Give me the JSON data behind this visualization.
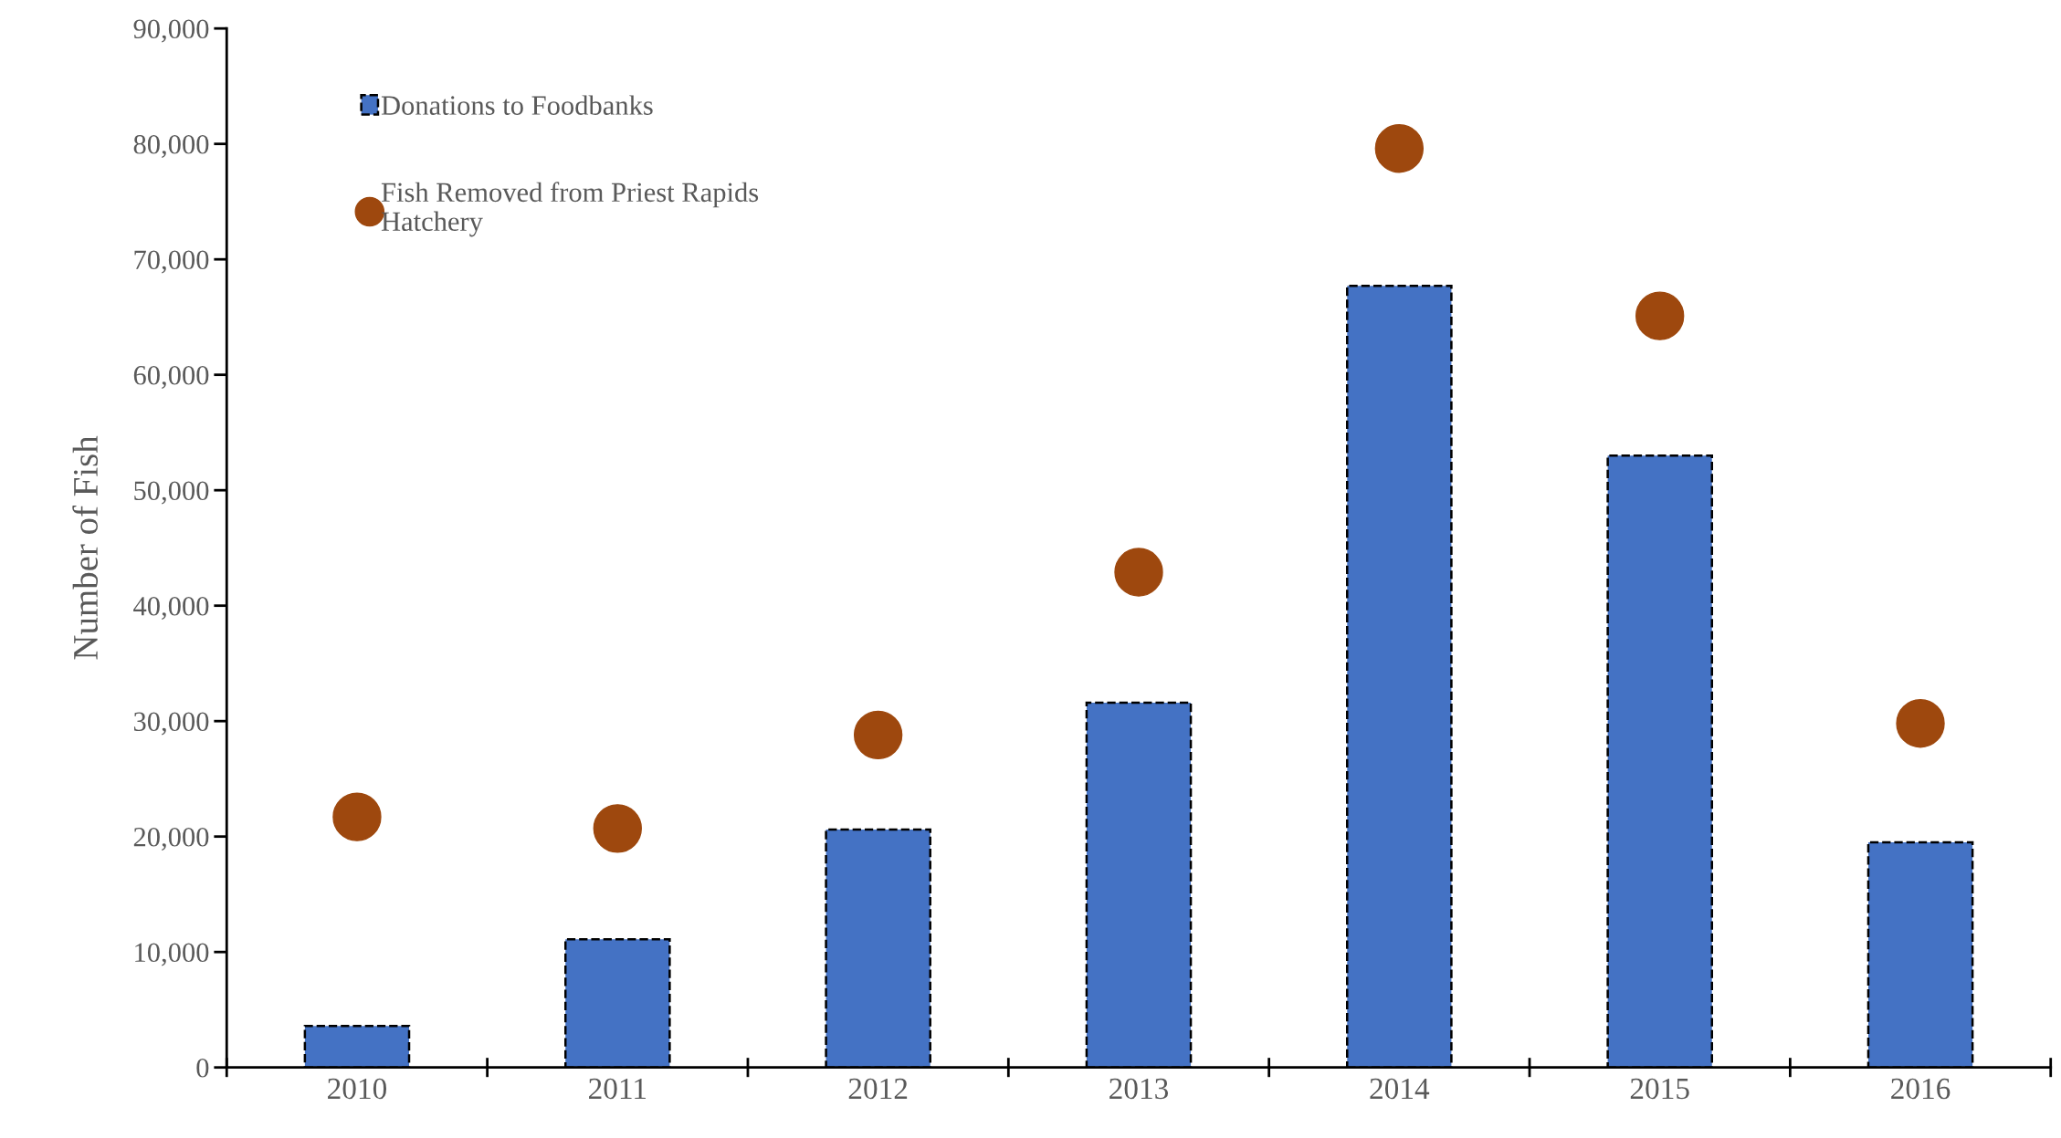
{
  "chart_data": {
    "type": "bar",
    "ylabel": "Number of Fish",
    "categories": [
      "2010",
      "2011",
      "2012",
      "2013",
      "2014",
      "2015",
      "2016"
    ],
    "series": [
      {
        "name": "Donations to Foodbanks",
        "color": "#4472c4",
        "values": [
          3600,
          11100,
          20600,
          31600,
          67700,
          53000,
          19500
        ]
      },
      {
        "name": "Fish Removed from Priest Rapids\nHatchery",
        "type": "scatter",
        "color": "#9e480e",
        "marker": "circle",
        "values": [
          21700,
          20700,
          28800,
          42900,
          79600,
          65100,
          29800
        ]
      }
    ],
    "ylim": [
      0,
      90000
    ],
    "yticks": [
      {
        "value": 0,
        "label": "0"
      },
      {
        "value": 10000,
        "label": "10,000"
      },
      {
        "value": 20000,
        "label": "20,000"
      },
      {
        "value": 30000,
        "label": "30,000"
      },
      {
        "value": 40000,
        "label": "40,000"
      },
      {
        "value": 50000,
        "label": "50,000"
      },
      {
        "value": 60000,
        "label": "60,000"
      },
      {
        "value": 70000,
        "label": "70,000"
      },
      {
        "value": 80000,
        "label": "80,000"
      },
      {
        "value": 90000,
        "label": "90,000"
      }
    ],
    "grid": false,
    "legend": "top left"
  }
}
